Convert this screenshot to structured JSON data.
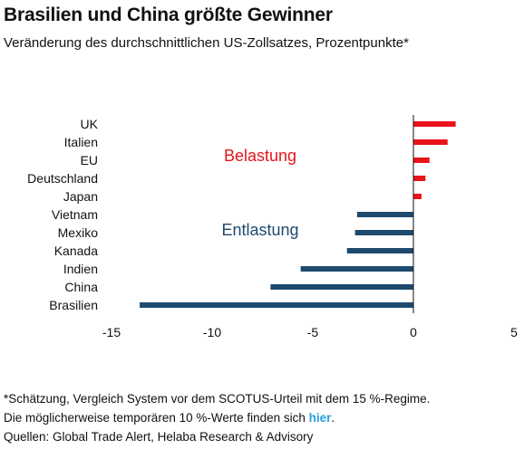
{
  "header": {
    "title": "Brasilien und China größte Gewinner",
    "subtitle": "Veränderung des durchschnittlichen US-Zollsatzes, Prozentpunkte*"
  },
  "annotations": {
    "burden": "Belastung",
    "relief": "Entlastung"
  },
  "colors": {
    "burden": "#e8131b",
    "relief": "#1e4a6e",
    "link": "#2aa0d8"
  },
  "chart_data": {
    "type": "bar",
    "orientation": "horizontal",
    "categories": [
      "UK",
      "Italien",
      "EU",
      "Deutschland",
      "Japan",
      "Vietnam",
      "Mexiko",
      "Kanada",
      "Indien",
      "China",
      "Brasilien"
    ],
    "values": [
      2.1,
      1.7,
      0.8,
      0.6,
      0.4,
      -2.8,
      -2.9,
      -3.3,
      -5.6,
      -7.1,
      -13.6
    ],
    "xlim": [
      -15,
      5
    ],
    "xticks": [
      "-15",
      "-10",
      "-5",
      "0",
      "5"
    ],
    "grid": false
  },
  "footer": {
    "note": "*Schätzung, Vergleich System vor dem SCOTUS-Urteil mit dem 15 %-Regime.",
    "line2_prefix": "Die möglicherweise temporären 10 %-Werte finden sich ",
    "link_text": "hier",
    "line2_suffix": ".",
    "sources": "Quellen: Global Trade Alert, Helaba Research & Advisory"
  }
}
